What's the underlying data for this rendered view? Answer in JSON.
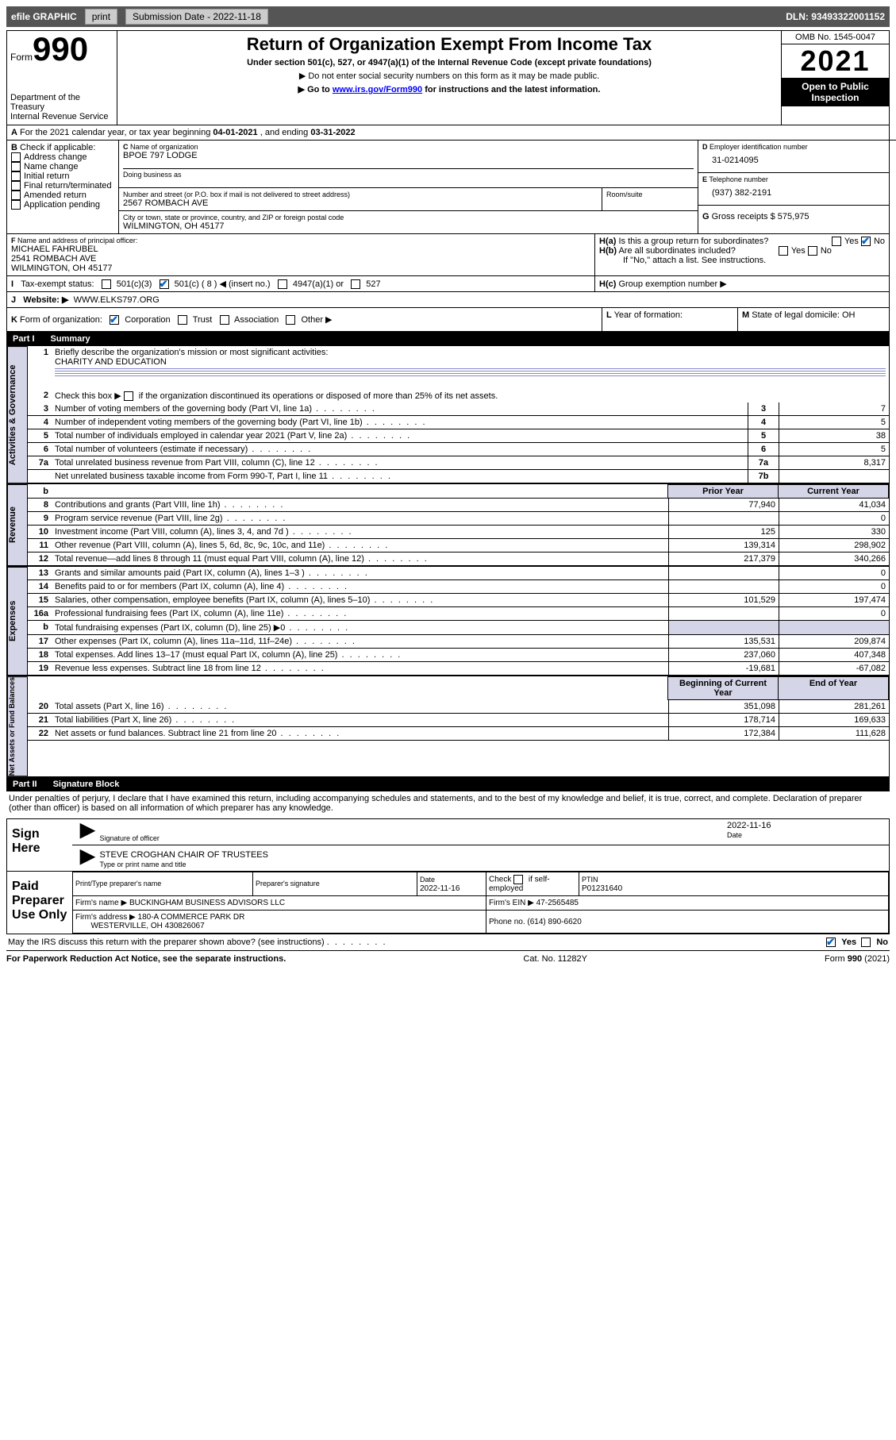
{
  "toolbar": {
    "efile": "efile GRAPHIC",
    "print": "print",
    "sub_date_label": "Submission Date - 2022-11-18",
    "dln": "DLN: 93493322001152"
  },
  "header": {
    "form_word": "Form",
    "form_num": "990",
    "dept": "Department of the Treasury",
    "irs": "Internal Revenue Service",
    "title": "Return of Organization Exempt From Income Tax",
    "sub1": "Under section 501(c), 527, or 4947(a)(1) of the Internal Revenue Code (except private foundations)",
    "sub2": "▶ Do not enter social security numbers on this form as it may be made public.",
    "sub3_pre": "▶ Go to ",
    "sub3_link": "www.irs.gov/Form990",
    "sub3_post": " for instructions and the latest information.",
    "omb": "OMB No. 1545-0047",
    "year": "2021",
    "inspection": "Open to Public Inspection"
  },
  "A": {
    "text_pre": "For the 2021 calendar year, or tax year beginning ",
    "begin": "04-01-2021",
    "mid": " , and ending ",
    "end": "03-31-2022"
  },
  "B": {
    "label": "Check if applicable:",
    "opts": [
      "Address change",
      "Name change",
      "Initial return",
      "Final return/terminated",
      "Amended return",
      "Application pending"
    ]
  },
  "C": {
    "name_label": "Name of organization",
    "name": "BPOE 797 LODGE",
    "dba_label": "Doing business as",
    "street_label": "Number and street (or P.O. box if mail is not delivered to street address)",
    "room_label": "Room/suite",
    "street": "2567 ROMBACH AVE",
    "city_label": "City or town, state or province, country, and ZIP or foreign postal code",
    "city": "WILMINGTON, OH  45177"
  },
  "D": {
    "label": "Employer identification number",
    "value": "31-0214095"
  },
  "E": {
    "label": "Telephone number",
    "value": "(937) 382-2191"
  },
  "G": {
    "label": "Gross receipts $",
    "value": "575,975"
  },
  "F": {
    "label": "Name and address of principal officer:",
    "name": "MICHAEL FAHRUBEL",
    "addr1": "2541 ROMBACH AVE",
    "addr2": "WILMINGTON, OH  45177"
  },
  "H": {
    "a": "Is this a group return for subordinates?",
    "b": "Are all subordinates included?",
    "b_note": "If \"No,\" attach a list. See instructions.",
    "c": "Group exemption number ▶"
  },
  "I": {
    "label": "Tax-exempt status:",
    "t501c3": "501(c)(3)",
    "t501c": "501(c) ( 8 ) ◀ (insert no.)",
    "t4947": "4947(a)(1) or",
    "t527": "527"
  },
  "J": {
    "label": "Website: ▶",
    "value": "WWW.ELKS797.ORG"
  },
  "K": {
    "label": "Form of organization:",
    "opts": [
      "Corporation",
      "Trust",
      "Association",
      "Other ▶"
    ]
  },
  "L": {
    "label": "Year of formation:"
  },
  "M": {
    "label": "State of legal domicile:",
    "value": "OH"
  },
  "part1": {
    "header_part": "Part I",
    "header_title": "Summary",
    "line1": "Briefly describe the organization's mission or most significant activities:",
    "line1_val": "CHARITY AND EDUCATION",
    "line2": "Check this box ▶         if the organization discontinued its operations or disposed of more than 25% of its net assets.",
    "rows": [
      {
        "n": "3",
        "t": "Number of voting members of the governing body (Part VI, line 1a)",
        "box": "3",
        "v": "7"
      },
      {
        "n": "4",
        "t": "Number of independent voting members of the governing body (Part VI, line 1b)",
        "box": "4",
        "v": "5"
      },
      {
        "n": "5",
        "t": "Total number of individuals employed in calendar year 2021 (Part V, line 2a)",
        "box": "5",
        "v": "38"
      },
      {
        "n": "6",
        "t": "Total number of volunteers (estimate if necessary)",
        "box": "6",
        "v": "5"
      },
      {
        "n": "7a",
        "t": "Total unrelated business revenue from Part VIII, column (C), line 12",
        "box": "7a",
        "v": "8,317"
      },
      {
        "n": "",
        "t": "Net unrelated business taxable income from Form 990-T, Part I, line 11",
        "box": "7b",
        "v": ""
      }
    ],
    "col_prior": "Prior Year",
    "col_current": "Current Year",
    "revenue": [
      {
        "n": "8",
        "t": "Contributions and grants (Part VIII, line 1h)",
        "p": "77,940",
        "c": "41,034"
      },
      {
        "n": "9",
        "t": "Program service revenue (Part VIII, line 2g)",
        "p": "",
        "c": "0"
      },
      {
        "n": "10",
        "t": "Investment income (Part VIII, column (A), lines 3, 4, and 7d )",
        "p": "125",
        "c": "330"
      },
      {
        "n": "11",
        "t": "Other revenue (Part VIII, column (A), lines 5, 6d, 8c, 9c, 10c, and 11e)",
        "p": "139,314",
        "c": "298,902"
      },
      {
        "n": "12",
        "t": "Total revenue—add lines 8 through 11 (must equal Part VIII, column (A), line 12)",
        "p": "217,379",
        "c": "340,266"
      }
    ],
    "expenses": [
      {
        "n": "13",
        "t": "Grants and similar amounts paid (Part IX, column (A), lines 1–3 )",
        "p": "",
        "c": "0"
      },
      {
        "n": "14",
        "t": "Benefits paid to or for members (Part IX, column (A), line 4)",
        "p": "",
        "c": "0"
      },
      {
        "n": "15",
        "t": "Salaries, other compensation, employee benefits (Part IX, column (A), lines 5–10)",
        "p": "101,529",
        "c": "197,474"
      },
      {
        "n": "16a",
        "t": "Professional fundraising fees (Part IX, column (A), line 11e)",
        "p": "",
        "c": "0"
      },
      {
        "n": "b",
        "t": "Total fundraising expenses (Part IX, column (D), line 25) ▶0",
        "p": "GRAY",
        "c": "GRAY"
      },
      {
        "n": "17",
        "t": "Other expenses (Part IX, column (A), lines 11a–11d, 11f–24e)",
        "p": "135,531",
        "c": "209,874"
      },
      {
        "n": "18",
        "t": "Total expenses. Add lines 13–17 (must equal Part IX, column (A), line 25)",
        "p": "237,060",
        "c": "407,348"
      },
      {
        "n": "19",
        "t": "Revenue less expenses. Subtract line 18 from line 12",
        "p": "-19,681",
        "c": "-67,082"
      }
    ],
    "col_begin": "Beginning of Current Year",
    "col_end": "End of Year",
    "netassets": [
      {
        "n": "20",
        "t": "Total assets (Part X, line 16)",
        "p": "351,098",
        "c": "281,261"
      },
      {
        "n": "21",
        "t": "Total liabilities (Part X, line 26)",
        "p": "178,714",
        "c": "169,633"
      },
      {
        "n": "22",
        "t": "Net assets or fund balances. Subtract line 21 from line 20",
        "p": "172,384",
        "c": "111,628"
      }
    ],
    "side_gov": "Activities & Governance",
    "side_rev": "Revenue",
    "side_exp": "Expenses",
    "side_net": "Net Assets or Fund Balances"
  },
  "part2": {
    "header_part": "Part II",
    "header_title": "Signature Block",
    "perjury": "Under penalties of perjury, I declare that I have examined this return, including accompanying schedules and statements, and to the best of my knowledge and belief, it is true, correct, and complete. Declaration of preparer (other than officer) is based on all information of which preparer has any knowledge.",
    "sign_here": "Sign Here",
    "sig_officer": "Signature of officer",
    "sig_date": "Date",
    "sig_date_val": "2022-11-16",
    "sig_name": "STEVE CROGHAN CHAIR OF TRUSTEES",
    "sig_name_label": "Type or print name and title",
    "paid_label": "Paid Preparer Use Only",
    "prep_name_label": "Print/Type preparer's name",
    "prep_sig_label": "Preparer's signature",
    "prep_date_label": "Date",
    "prep_date": "2022-11-16",
    "prep_check": "Check         if self-employed",
    "ptin_label": "PTIN",
    "ptin": "P01231640",
    "firm_name_label": "Firm's name    ▶",
    "firm_name": "BUCKINGHAM BUSINESS ADVISORS LLC",
    "firm_ein_label": "Firm's EIN ▶",
    "firm_ein": "47-2565485",
    "firm_addr_label": "Firm's address ▶",
    "firm_addr1": "180-A COMMERCE PARK DR",
    "firm_addr2": "WESTERVILLE, OH  430826067",
    "phone_label": "Phone no.",
    "phone": "(614) 890-6620",
    "discuss": "May the IRS discuss this return with the preparer shown above? (see instructions)",
    "yes": "Yes",
    "no": "No"
  },
  "footer": {
    "left": "For Paperwork Reduction Act Notice, see the separate instructions.",
    "mid": "Cat. No. 11282Y",
    "right": "Form 990 (2021)"
  }
}
